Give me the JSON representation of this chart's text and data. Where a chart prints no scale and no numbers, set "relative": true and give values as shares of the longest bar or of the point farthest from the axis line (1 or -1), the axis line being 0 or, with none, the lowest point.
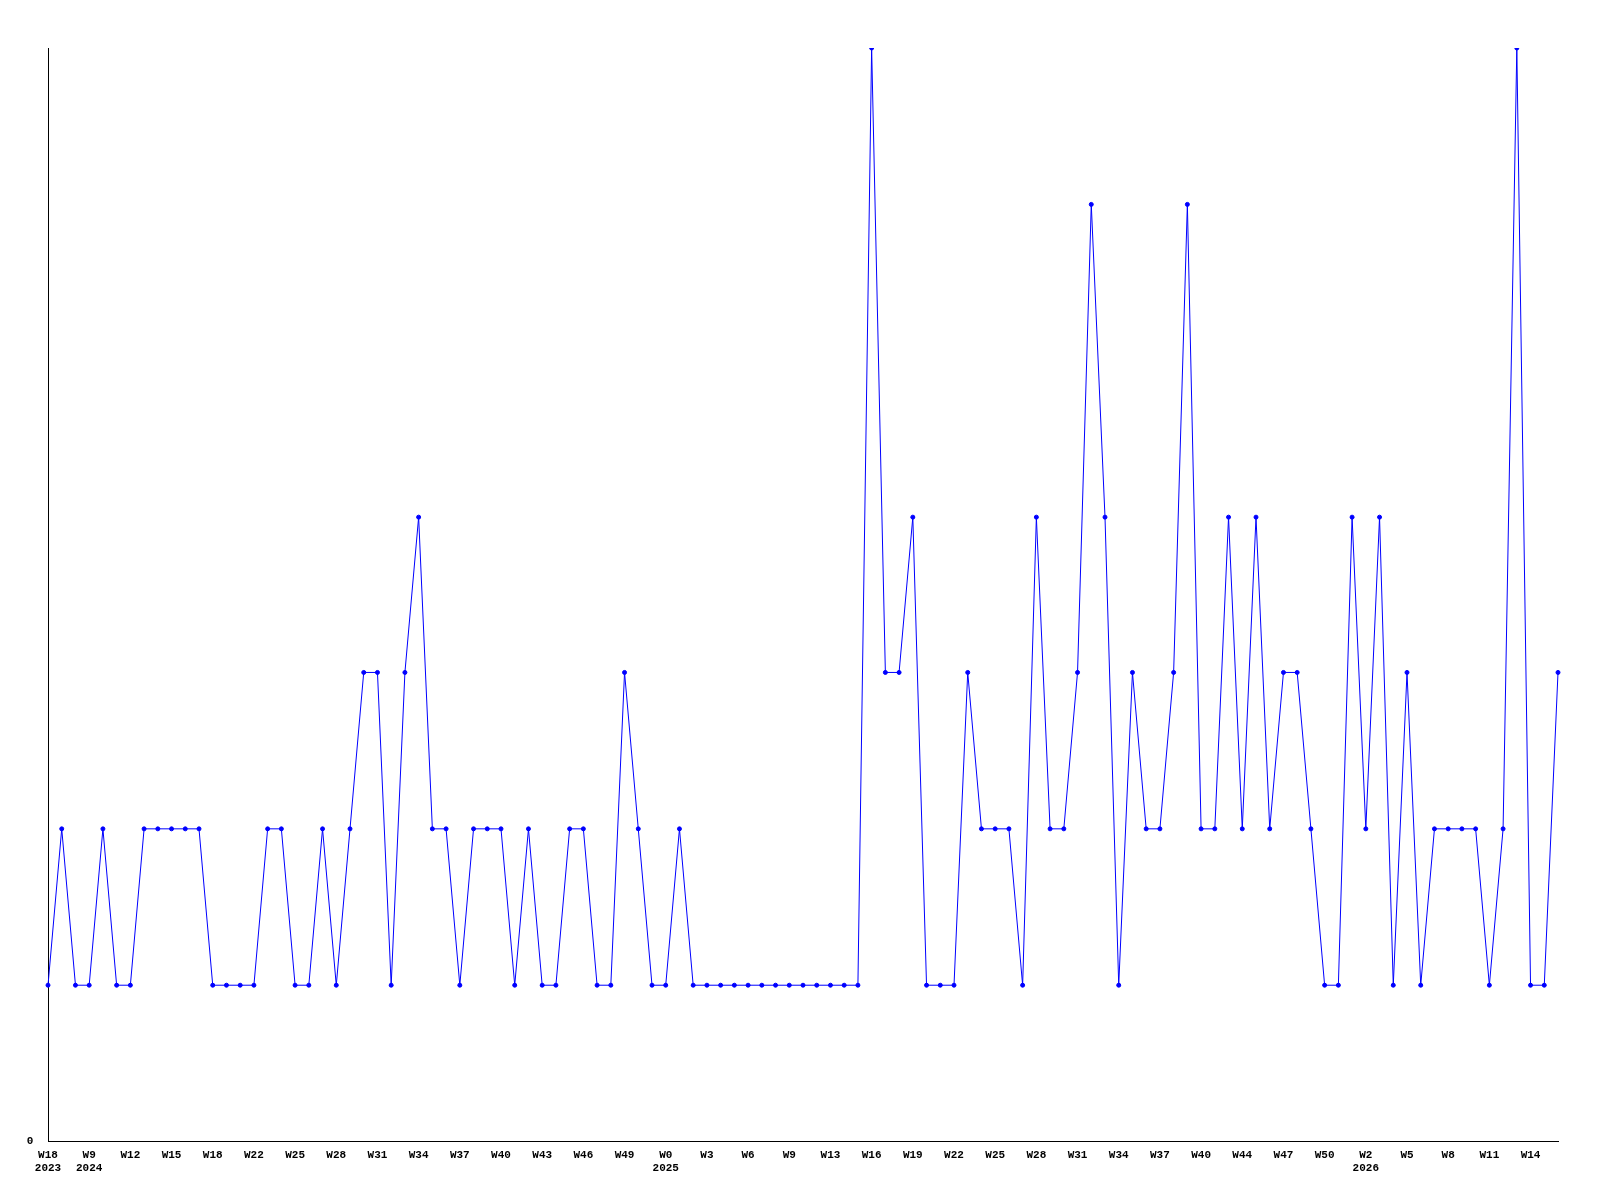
{
  "chart_data": {
    "type": "line",
    "relative": true,
    "categories": [
      "W18\n2023",
      null,
      null,
      "W9\n2024",
      null,
      null,
      "W12",
      null,
      null,
      "W15",
      null,
      null,
      "W18",
      null,
      null,
      "W22",
      null,
      null,
      "W25",
      null,
      null,
      "W28",
      null,
      null,
      "W31",
      null,
      null,
      "W34",
      null,
      null,
      "W37",
      null,
      null,
      "W40",
      null,
      null,
      "W43",
      null,
      null,
      "W46",
      null,
      null,
      "W49",
      null,
      null,
      "W0\n2025",
      null,
      null,
      "W3",
      null,
      null,
      "W6",
      null,
      null,
      "W9",
      null,
      null,
      "W13",
      null,
      null,
      "W16",
      null,
      null,
      "W19",
      null,
      null,
      "W22",
      null,
      null,
      "W25",
      null,
      null,
      "W28",
      null,
      null,
      "W31",
      null,
      null,
      "W34",
      null,
      null,
      "W37",
      null,
      null,
      "W40",
      null,
      null,
      "W44",
      null,
      null,
      "W47",
      null,
      null,
      "W50",
      null,
      null,
      "W2\n2026",
      null,
      null,
      "W5",
      null,
      null,
      "W8",
      null,
      null,
      "W11",
      null,
      null,
      "W14",
      null,
      null
    ],
    "series": [
      {
        "color": "#0000ff",
        "values": [
          0.143,
          0.286,
          0.143,
          0.143,
          0.286,
          0.143,
          0.143,
          0.286,
          0.286,
          0.286,
          0.286,
          0.286,
          0.143,
          0.143,
          0.143,
          0.143,
          0.286,
          0.286,
          0.143,
          0.143,
          0.286,
          0.143,
          0.286,
          0.429,
          0.429,
          0.143,
          0.429,
          0.571,
          0.286,
          0.286,
          0.143,
          0.286,
          0.286,
          0.286,
          0.143,
          0.286,
          0.143,
          0.143,
          0.286,
          0.286,
          0.143,
          0.143,
          0.429,
          0.286,
          0.143,
          0.143,
          0.286,
          0.143,
          0.143,
          0.143,
          0.143,
          0.143,
          0.143,
          0.143,
          0.143,
          0.143,
          0.143,
          0.143,
          0.143,
          0.143,
          1,
          0.429,
          0.429,
          0.571,
          0.143,
          0.143,
          0.143,
          0.429,
          0.286,
          0.286,
          0.286,
          0.143,
          0.571,
          0.286,
          0.286,
          0.429,
          0.857,
          0.571,
          0.143,
          0.429,
          0.286,
          0.286,
          0.429,
          0.857,
          0.286,
          0.286,
          0.571,
          0.286,
          0.571,
          0.286,
          0.429,
          0.429,
          0.286,
          0.143,
          0.143,
          0.571,
          0.286,
          0.571,
          0.143,
          0.429,
          0.143,
          0.286,
          0.286,
          0.286,
          0.286,
          0.143,
          0.286,
          1,
          0.143,
          0.143,
          0.429
        ]
      }
    ],
    "annotations": [
      "0"
    ],
    "marker": "circle",
    "grid": false,
    "legend": false
  }
}
